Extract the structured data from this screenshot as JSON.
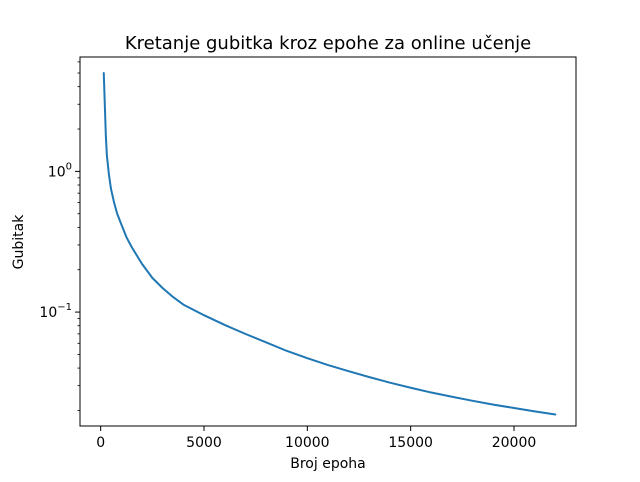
{
  "chart_data": {
    "type": "line",
    "title": "Kretanje gubitka kroz epohe za online učenje",
    "xlabel": "Broj epoha",
    "ylabel": "Gubitak",
    "yscale": "log",
    "grid": false,
    "legend": "none",
    "xlim": [
      -1000,
      23000
    ],
    "ylim": [
      0.0155,
      6.5
    ],
    "xticks": [
      {
        "value": 0,
        "label": "0"
      },
      {
        "value": 5000,
        "label": "5000"
      },
      {
        "value": 10000,
        "label": "10000"
      },
      {
        "value": 15000,
        "label": "15000"
      },
      {
        "value": 20000,
        "label": "20000"
      }
    ],
    "yticks": [
      {
        "value": 0.1,
        "base": "10",
        "exp": "−1"
      },
      {
        "value": 1,
        "base": "10",
        "exp": "0"
      }
    ],
    "series": [
      {
        "color": "#1f77b4",
        "x": [
          150,
          200,
          250,
          300,
          400,
          500,
          650,
          800,
          1000,
          1250,
          1500,
          2000,
          2500,
          3000,
          3500,
          4000,
          5000,
          6000,
          7000,
          8000,
          9000,
          10000,
          11000,
          12000,
          13000,
          14000,
          15000,
          16000,
          17000,
          18000,
          19000,
          20000,
          21000,
          22000
        ],
        "y": [
          5.0,
          3.0,
          1.8,
          1.3,
          0.95,
          0.75,
          0.6,
          0.5,
          0.42,
          0.34,
          0.29,
          0.22,
          0.175,
          0.148,
          0.128,
          0.113,
          0.095,
          0.081,
          0.07,
          0.061,
          0.053,
          0.047,
          0.042,
          0.038,
          0.0345,
          0.0315,
          0.029,
          0.0268,
          0.025,
          0.0234,
          0.022,
          0.0208,
          0.0197,
          0.0187
        ]
      }
    ]
  }
}
